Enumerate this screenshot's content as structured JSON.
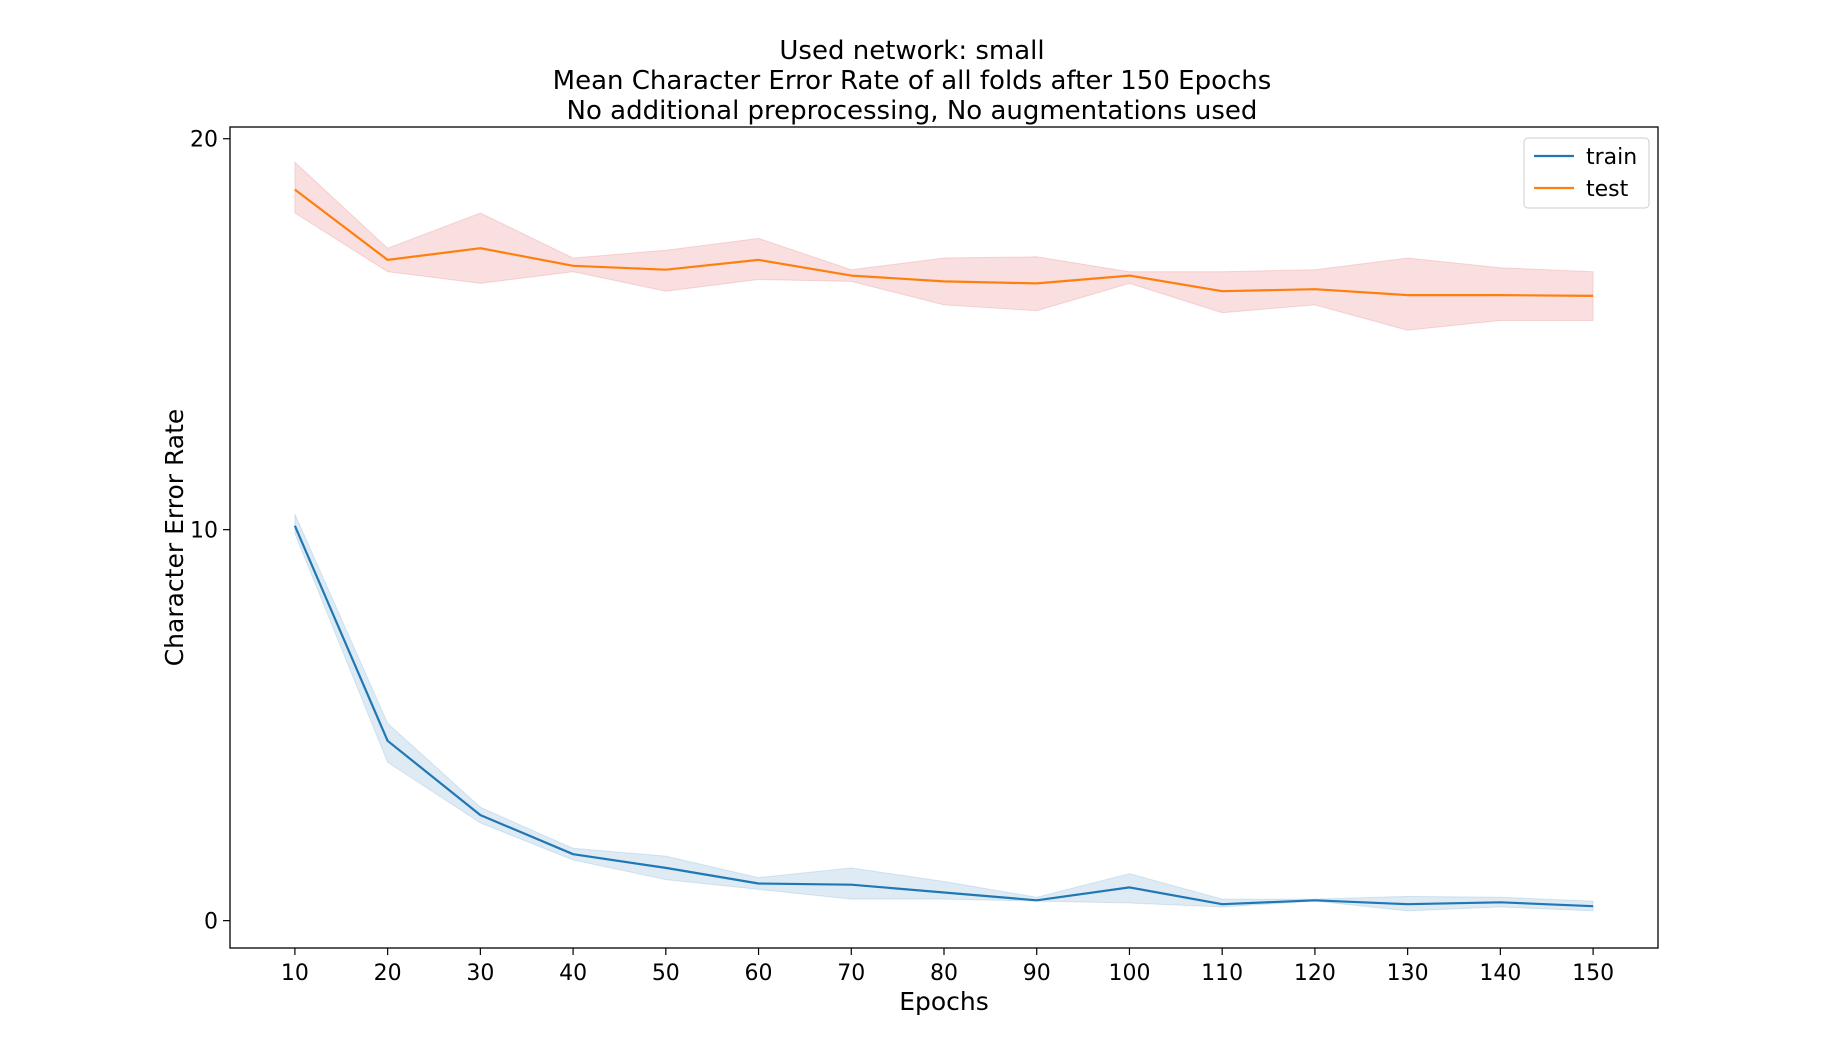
{
  "chart_data": {
    "type": "line",
    "title_lines": [
      "Used network: small",
      "Mean Character Error Rate of all folds after 150 Epochs",
      "No additional preprocessing, No augmentations used"
    ],
    "xlabel": "Epochs",
    "ylabel": "Character Error Rate",
    "x": [
      10,
      20,
      30,
      40,
      50,
      60,
      70,
      80,
      90,
      100,
      110,
      120,
      130,
      140,
      150
    ],
    "xlim": [
      3,
      157
    ],
    "ylim": [
      -0.7,
      20.3
    ],
    "xticks": [
      "10",
      "20",
      "30",
      "40",
      "50",
      "60",
      "70",
      "80",
      "90",
      "100",
      "110",
      "120",
      "130",
      "140",
      "150"
    ],
    "xtick_values": [
      10,
      20,
      30,
      40,
      50,
      60,
      70,
      80,
      90,
      100,
      110,
      120,
      130,
      140,
      150
    ],
    "yticks": [
      "0",
      "10",
      "20"
    ],
    "ytick_values": [
      0,
      10,
      20
    ],
    "grid": false,
    "legend": "top-right",
    "series": [
      {
        "name": "train",
        "color": "#1f77b4",
        "band_color": "#1f77b4",
        "values": [
          10.1,
          4.6,
          2.7,
          1.7,
          1.35,
          0.95,
          0.92,
          0.72,
          0.52,
          0.85,
          0.42,
          0.52,
          0.42,
          0.47,
          0.37
        ],
        "lower": [
          9.9,
          4.05,
          2.5,
          1.55,
          1.05,
          0.8,
          0.55,
          0.55,
          0.5,
          0.45,
          0.35,
          0.5,
          0.25,
          0.35,
          0.25
        ],
        "upper": [
          10.4,
          5.05,
          2.9,
          1.85,
          1.65,
          1.1,
          1.35,
          1.0,
          0.6,
          1.2,
          0.55,
          0.55,
          0.62,
          0.6,
          0.5
        ]
      },
      {
        "name": "test",
        "color": "#ff7f0e",
        "band_color": "#d62728",
        "values": [
          18.7,
          16.9,
          17.2,
          16.75,
          16.65,
          16.9,
          16.5,
          16.35,
          16.3,
          16.5,
          16.1,
          16.15,
          16.0,
          16.0,
          15.98
        ],
        "lower": [
          18.1,
          16.6,
          16.3,
          16.6,
          16.1,
          16.4,
          16.35,
          15.75,
          15.6,
          16.3,
          15.55,
          15.75,
          15.1,
          15.35,
          15.35
        ],
        "upper": [
          19.4,
          17.2,
          18.1,
          16.95,
          17.15,
          17.45,
          16.65,
          16.95,
          16.98,
          16.6,
          16.6,
          16.65,
          16.95,
          16.7,
          16.6
        ]
      }
    ]
  }
}
